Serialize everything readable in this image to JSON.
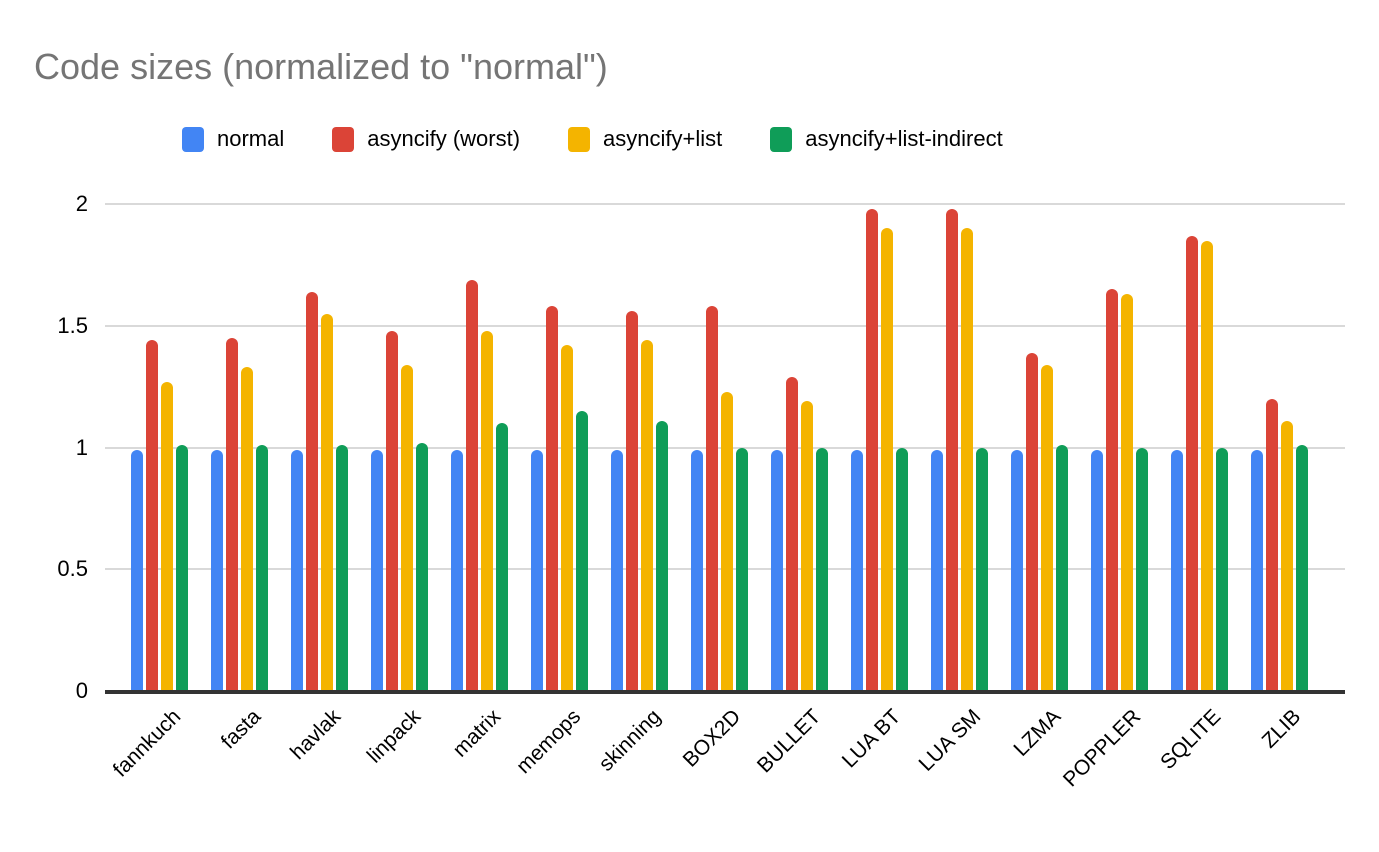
{
  "chart_data": {
    "type": "bar",
    "title": "Code sizes (normalized to \"normal\")",
    "categories": [
      "fannkuch",
      "fasta",
      "havlak",
      "linpack",
      "matrix",
      "memops",
      "skinning",
      "BOX2D",
      "BULLET",
      "LUA BT",
      "LUA SM",
      "LZMA",
      "POPPLER",
      "SQLITE",
      "ZLIB"
    ],
    "series": [
      {
        "name": "normal",
        "color": "#4285F4",
        "values": [
          0.99,
          0.99,
          0.99,
          0.99,
          0.99,
          0.99,
          0.99,
          0.99,
          0.99,
          0.99,
          0.99,
          0.99,
          0.99,
          0.99,
          0.99
        ]
      },
      {
        "name": "asyncify (worst)",
        "color": "#DB4437",
        "values": [
          1.44,
          1.45,
          1.64,
          1.48,
          1.69,
          1.58,
          1.56,
          1.58,
          1.29,
          1.98,
          1.98,
          1.39,
          1.65,
          1.87,
          1.2
        ]
      },
      {
        "name": "asyncify+list",
        "color": "#F4B400",
        "values": [
          1.27,
          1.33,
          1.55,
          1.34,
          1.48,
          1.42,
          1.44,
          1.23,
          1.19,
          1.9,
          1.9,
          1.34,
          1.63,
          1.85,
          1.11
        ]
      },
      {
        "name": "asyncify+list-indirect",
        "color": "#0F9D58",
        "values": [
          1.01,
          1.01,
          1.01,
          1.02,
          1.1,
          1.15,
          1.11,
          1.0,
          1.0,
          1.0,
          1.0,
          1.01,
          1.0,
          1.0,
          1.01
        ]
      }
    ],
    "xlabel": "",
    "ylabel": "",
    "ylim": [
      0,
      2
    ],
    "yticks": [
      0,
      0.5,
      1,
      1.5,
      2
    ],
    "grid": true,
    "legend_position": "top",
    "axis_colors": {
      "gridline": "#d9d9d9",
      "baseline": "#333333",
      "title": "#757575",
      "tick_text": "#000000"
    }
  }
}
